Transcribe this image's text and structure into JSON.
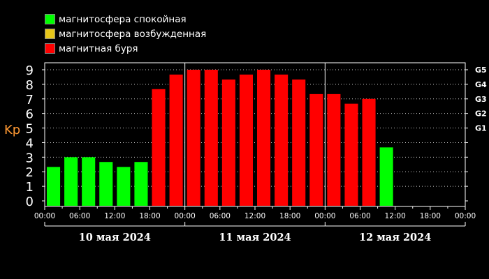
{
  "legend": [
    {
      "label": "магнитосфера спокойная",
      "color": "#00ff00"
    },
    {
      "label": "магнитосфера возбужденная",
      "color": "#e6c619"
    },
    {
      "label": "магнитная буря",
      "color": "#ff0000"
    }
  ],
  "chart_data": {
    "type": "bar",
    "ylabel": "Kp",
    "ylim": [
      0,
      9
    ],
    "yticks": [
      "0",
      "1",
      "2",
      "3",
      "4",
      "5",
      "6",
      "7",
      "8",
      "9"
    ],
    "right_ticks": [
      {
        "label": "G5",
        "value": 9
      },
      {
        "label": "G4",
        "value": 8
      },
      {
        "label": "G3",
        "value": 7
      },
      {
        "label": "G2",
        "value": 6
      },
      {
        "label": "G1",
        "value": 5
      }
    ],
    "grid": "dotted-horizontal",
    "xtick_labels": [
      "00:00",
      "06:00",
      "12:00",
      "18:00",
      "00:00",
      "06:00",
      "12:00",
      "18:00",
      "00:00",
      "06:00",
      "12:00",
      "18:00",
      "00:00"
    ],
    "days": [
      "10 мая 2024",
      "11 мая 2024",
      "12 мая 2024"
    ],
    "interval_hours": 3,
    "total_slots": 24,
    "values": [
      2.33,
      3,
      3,
      2.67,
      2.33,
      2.67,
      7.67,
      8.67,
      9,
      9,
      8.33,
      8.67,
      9,
      8.67,
      8.33,
      7.33,
      7.33,
      6.67,
      7,
      3.67
    ],
    "colors": [
      "#00ff00",
      "#00ff00",
      "#00ff00",
      "#00ff00",
      "#00ff00",
      "#00ff00",
      "#ff0000",
      "#ff0000",
      "#ff0000",
      "#ff0000",
      "#ff0000",
      "#ff0000",
      "#ff0000",
      "#ff0000",
      "#ff0000",
      "#ff0000",
      "#ff0000",
      "#ff0000",
      "#ff0000",
      "#00ff00"
    ]
  }
}
